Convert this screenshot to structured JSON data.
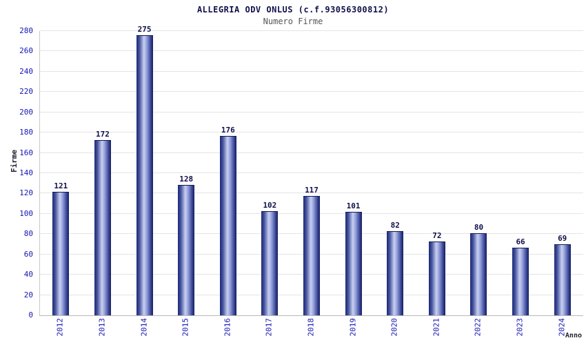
{
  "chart_data": {
    "type": "bar",
    "title": "ALLEGRIA ODV ONLUS (c.f.93056300812)",
    "subtitle": "Numero Firme",
    "xlabel": "Anno",
    "ylabel": "Firme",
    "categories": [
      "2012",
      "2013",
      "2014",
      "2015",
      "2016",
      "2017",
      "2018",
      "2019",
      "2020",
      "2021",
      "2022",
      "2023",
      "2024"
    ],
    "values": [
      121,
      172,
      275,
      128,
      176,
      102,
      117,
      101,
      82,
      72,
      80,
      66,
      69
    ],
    "ylim": [
      0,
      280
    ],
    "ytick_step": 20,
    "grid": true,
    "legend": "none",
    "colors": {
      "bar_edge": "#1c2874",
      "bar_center": "#c9d0f0",
      "tick_label": "#1515b5",
      "value_label": "#10104a",
      "grid_line": "#e4e4e4",
      "title": "#10104a",
      "subtitle": "#555555"
    }
  }
}
